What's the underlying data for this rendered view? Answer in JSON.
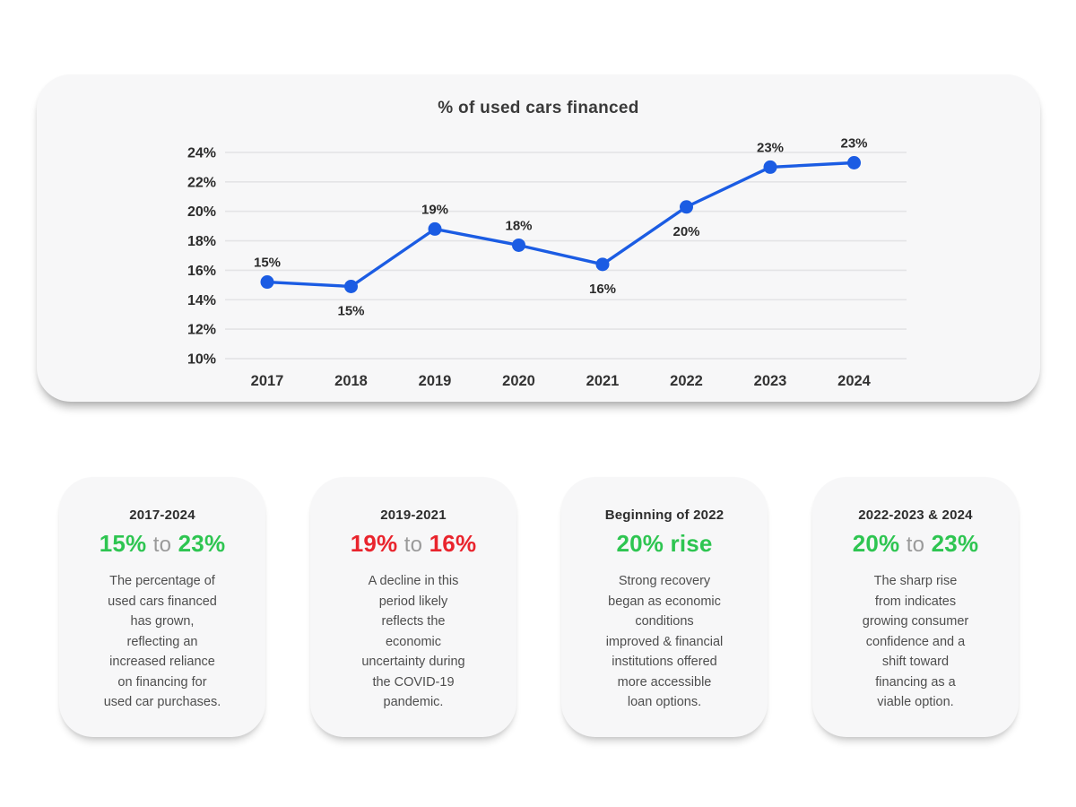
{
  "colors": {
    "blue": "#1B5CE3",
    "green": "#2EC551",
    "red": "#E9242D",
    "connector_gray": "#9A9A9A"
  },
  "chart_data": {
    "type": "line",
    "title": "% of used cars financed",
    "xlabel": "",
    "ylabel": "",
    "x": [
      "2017",
      "2018",
      "2019",
      "2020",
      "2021",
      "2022",
      "2023",
      "2024"
    ],
    "values": [
      15,
      15,
      19,
      18,
      16,
      20,
      23,
      23
    ],
    "point_values": [
      15.2,
      14.9,
      18.8,
      17.7,
      16.4,
      20.3,
      23.0,
      23.3
    ],
    "labels": [
      "15%",
      "15%",
      "19%",
      "18%",
      "16%",
      "20%",
      "23%",
      "23%"
    ],
    "label_positions": [
      "above",
      "below",
      "above",
      "above",
      "below",
      "below",
      "above",
      "above"
    ],
    "y_ticks": [
      "24%",
      "22%",
      "20%",
      "18%",
      "16%",
      "14%",
      "12%",
      "10%"
    ],
    "y_tick_values": [
      24,
      22,
      20,
      18,
      16,
      14,
      12,
      10
    ],
    "ylim": [
      10,
      24
    ],
    "grid": true,
    "legend": "none",
    "line_color": "#1B5CE3",
    "series_name": "% of used cars financed"
  },
  "cards": [
    {
      "period": "2017-2024",
      "from": "15%",
      "connector": "to",
      "to": "23%",
      "accent": "green",
      "body": "The percentage of\nused cars financed\nhas grown,\nreflecting an\nincreased reliance\non financing for\nused car purchases."
    },
    {
      "period": "2019-2021",
      "from": "19%",
      "connector": "to",
      "to": "16%",
      "accent": "red",
      "body": "A decline in this\nperiod likely\nreflects the\neconomic\nuncertainty during\nthe COVID-19\npandemic."
    },
    {
      "period": "Beginning of 2022",
      "from": "20% rise",
      "connector": "",
      "to": "",
      "accent": "green",
      "body": "Strong recovery\nbegan as economic\nconditions\nimproved & financial\ninstitutions offered\nmore accessible\nloan options."
    },
    {
      "period": "2022-2023 & 2024",
      "from": "20%",
      "connector": "to",
      "to": "23%",
      "accent": "green",
      "body": "The sharp rise\nfrom indicates\ngrowing consumer\nconfidence and a\nshift toward\nfinancing as a\nviable option."
    }
  ]
}
